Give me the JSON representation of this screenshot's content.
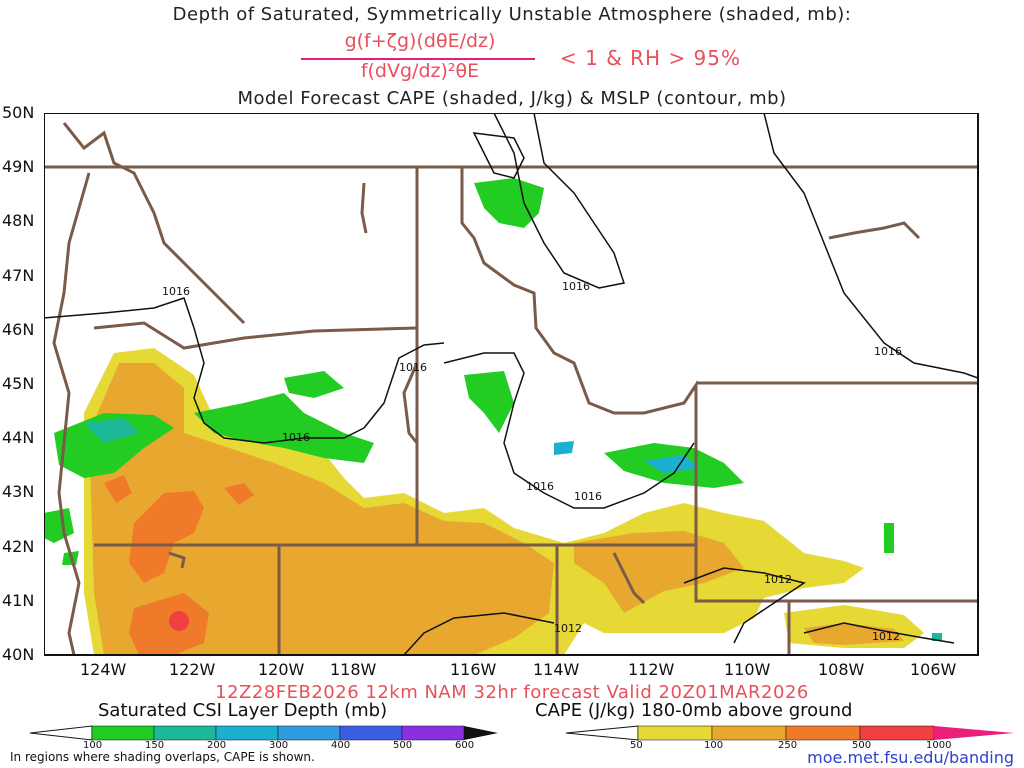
{
  "header": {
    "title_line1": "Depth of Saturated, Symmetrically Unstable Atmosphere (shaded, mb):",
    "numerator": "g(f+ζg)(dθE/dz)",
    "denominator": "f(dVg/dz)²θE",
    "condition": "< 1 & RH > 95%",
    "title_line3": "Model Forecast CAPE (shaded, J/kg) & MSLP (contour, mb)"
  },
  "map": {
    "lat_labels": [
      "50N",
      "49N",
      "48N",
      "47N",
      "46N",
      "45N",
      "44N",
      "43N",
      "42N",
      "41N",
      "40N"
    ],
    "lon_labels": [
      "124W",
      "122W",
      "120W",
      "118W",
      "116W",
      "114W",
      "112W",
      "110W",
      "108W",
      "106W"
    ],
    "isobar_labels": [
      "1016",
      "1016",
      "1016",
      "1016",
      "1016",
      "1016",
      "1016",
      "1012",
      "1012",
      "1012"
    ],
    "colors": {
      "border": "#7a5a48",
      "isobar": "#111111",
      "csi_green": "#22cc22",
      "csi_teal": "#1db89a",
      "csi_cyan": "#1cb0d0",
      "csi_blue": "#3a5ee0",
      "cape_yellow": "#e6d835",
      "cape_orange1": "#e8a830",
      "cape_orange2": "#ee7a2a",
      "cape_red": "#f04040"
    }
  },
  "footer": {
    "forecast_info": "12Z28FEB2026 12km NAM 32hr forecast Valid 20Z01MAR2026",
    "csi_legend_title": "Saturated CSI Layer Depth (mb)",
    "csi_ticks": [
      "100",
      "150",
      "200",
      "300",
      "400",
      "500",
      "600"
    ],
    "cape_legend_title": "CAPE (J/kg) 180-0mb above ground",
    "cape_ticks": [
      "50",
      "100",
      "250",
      "500",
      "1000"
    ],
    "note": "In regions where shading overlaps, CAPE is shown.",
    "credit": "moe.met.fsu.edu/banding"
  }
}
